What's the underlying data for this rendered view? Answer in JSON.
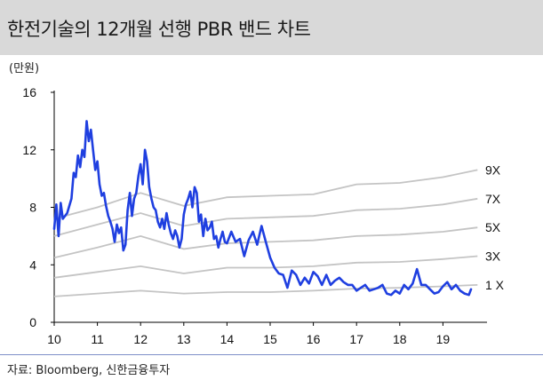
{
  "title": "한전기술의 12개월 선행 PBR 밴드 차트",
  "unit": "(만원)",
  "source": "자료: Bloomberg, 신한금융투자",
  "colors": {
    "price": "#1f3fe0",
    "band": "#c4c4c4",
    "title_bg": "#d9d9d9",
    "footer_rule": "#7f8fc8"
  },
  "chart_data": {
    "type": "line",
    "ylim": [
      0,
      16
    ],
    "xlim": [
      10,
      19.8
    ],
    "y_ticks": [
      "0",
      "4",
      "8",
      "12",
      "16"
    ],
    "x_ticks": [
      "10",
      "11",
      "12",
      "13",
      "14",
      "15",
      "16",
      "17",
      "18",
      "19"
    ],
    "series": [
      {
        "name": "1 X",
        "x": [
          10,
          11,
          12,
          13,
          14,
          15,
          16,
          17,
          18,
          19,
          19.8
        ],
        "values": [
          1.8,
          2.0,
          2.2,
          2.0,
          2.1,
          2.1,
          2.2,
          2.35,
          2.4,
          2.5,
          2.6
        ]
      },
      {
        "name": "3X",
        "x": [
          10,
          11,
          12,
          13,
          14,
          15,
          16,
          17,
          18,
          19,
          19.8
        ],
        "values": [
          3.1,
          3.5,
          3.9,
          3.4,
          3.8,
          3.8,
          3.9,
          4.15,
          4.2,
          4.4,
          4.6
        ]
      },
      {
        "name": "5X",
        "x": [
          10,
          11,
          12,
          13,
          14,
          15,
          16,
          17,
          18,
          19,
          19.8
        ],
        "values": [
          4.5,
          5.2,
          6.0,
          5.1,
          5.5,
          5.6,
          5.7,
          6.0,
          6.1,
          6.3,
          6.6
        ]
      },
      {
        "name": "7X",
        "x": [
          10,
          11,
          12,
          13,
          14,
          15,
          16,
          17,
          18,
          19,
          19.8
        ],
        "values": [
          6.0,
          6.8,
          7.6,
          6.7,
          7.2,
          7.3,
          7.4,
          7.8,
          7.9,
          8.2,
          8.6
        ]
      },
      {
        "name": "9X",
        "x": [
          10,
          11,
          12,
          13,
          14,
          15,
          16,
          17,
          18,
          19,
          19.8
        ],
        "values": [
          7.2,
          8.0,
          9.0,
          8.1,
          8.7,
          8.8,
          8.9,
          9.6,
          9.7,
          10.1,
          10.6
        ]
      },
      {
        "name": "",
        "x": [
          10.0,
          10.05,
          10.1,
          10.15,
          10.2,
          10.3,
          10.4,
          10.45,
          10.5,
          10.55,
          10.6,
          10.65,
          10.7,
          10.75,
          10.8,
          10.85,
          10.9,
          10.95,
          11.0,
          11.05,
          11.1,
          11.15,
          11.2,
          11.25,
          11.3,
          11.35,
          11.4,
          11.45,
          11.5,
          11.55,
          11.6,
          11.65,
          11.7,
          11.75,
          11.8,
          11.85,
          11.9,
          11.95,
          12.0,
          12.05,
          12.1,
          12.15,
          12.2,
          12.25,
          12.3,
          12.35,
          12.4,
          12.45,
          12.5,
          12.55,
          12.6,
          12.65,
          12.7,
          12.75,
          12.8,
          12.85,
          12.9,
          12.95,
          13.0,
          13.05,
          13.1,
          13.15,
          13.2,
          13.25,
          13.3,
          13.35,
          13.4,
          13.45,
          13.5,
          13.55,
          13.6,
          13.65,
          13.7,
          13.75,
          13.8,
          13.85,
          13.9,
          13.95,
          14.0,
          14.1,
          14.2,
          14.3,
          14.4,
          14.5,
          14.6,
          14.7,
          14.8,
          14.9,
          15.0,
          15.1,
          15.2,
          15.3,
          15.4,
          15.5,
          15.6,
          15.7,
          15.8,
          15.9,
          16.0,
          16.1,
          16.2,
          16.3,
          16.4,
          16.5,
          16.6,
          16.7,
          16.8,
          16.9,
          17.0,
          17.1,
          17.2,
          17.3,
          17.4,
          17.5,
          17.6,
          17.7,
          17.8,
          17.9,
          18.0,
          18.1,
          18.2,
          18.3,
          18.4,
          18.5,
          18.6,
          18.7,
          18.8,
          18.9,
          19.0,
          19.1,
          19.2,
          19.3,
          19.4,
          19.5,
          19.6,
          19.65
        ],
        "values": [
          6.5,
          8.2,
          6.0,
          8.3,
          7.2,
          7.6,
          8.6,
          10.4,
          10.1,
          11.6,
          10.8,
          12.0,
          11.5,
          14.0,
          12.6,
          13.4,
          12.0,
          10.6,
          11.2,
          9.6,
          8.8,
          9.0,
          8.1,
          7.4,
          7.0,
          6.5,
          5.6,
          6.8,
          6.2,
          6.6,
          5.0,
          5.4,
          7.8,
          9.0,
          7.4,
          8.6,
          9.0,
          10.2,
          11.0,
          9.6,
          12.0,
          11.2,
          9.4,
          8.6,
          8.0,
          7.8,
          7.0,
          6.6,
          7.2,
          6.5,
          7.6,
          6.8,
          6.2,
          5.8,
          6.4,
          6.0,
          5.2,
          5.8,
          7.5,
          8.2,
          8.6,
          9.1,
          8.0,
          9.4,
          9.0,
          7.0,
          7.5,
          6.0,
          7.2,
          6.4,
          6.6,
          7.0,
          5.8,
          6.0,
          5.2,
          5.8,
          6.3,
          5.6,
          5.5,
          6.3,
          5.6,
          5.8,
          4.6,
          5.7,
          6.3,
          5.4,
          6.7,
          5.6,
          4.5,
          3.8,
          3.4,
          3.3,
          2.4,
          3.6,
          3.3,
          2.6,
          3.1,
          2.7,
          3.5,
          3.2,
          2.6,
          3.3,
          2.6,
          2.9,
          3.1,
          2.8,
          2.6,
          2.6,
          2.2,
          2.4,
          2.6,
          2.2,
          2.3,
          2.4,
          2.6,
          2.0,
          1.9,
          2.2,
          2.0,
          2.6,
          2.3,
          2.7,
          3.7,
          2.6,
          2.6,
          2.3,
          2.0,
          2.1,
          2.5,
          2.8,
          2.3,
          2.6,
          2.2,
          2.0,
          1.9,
          2.3
        ]
      }
    ]
  }
}
